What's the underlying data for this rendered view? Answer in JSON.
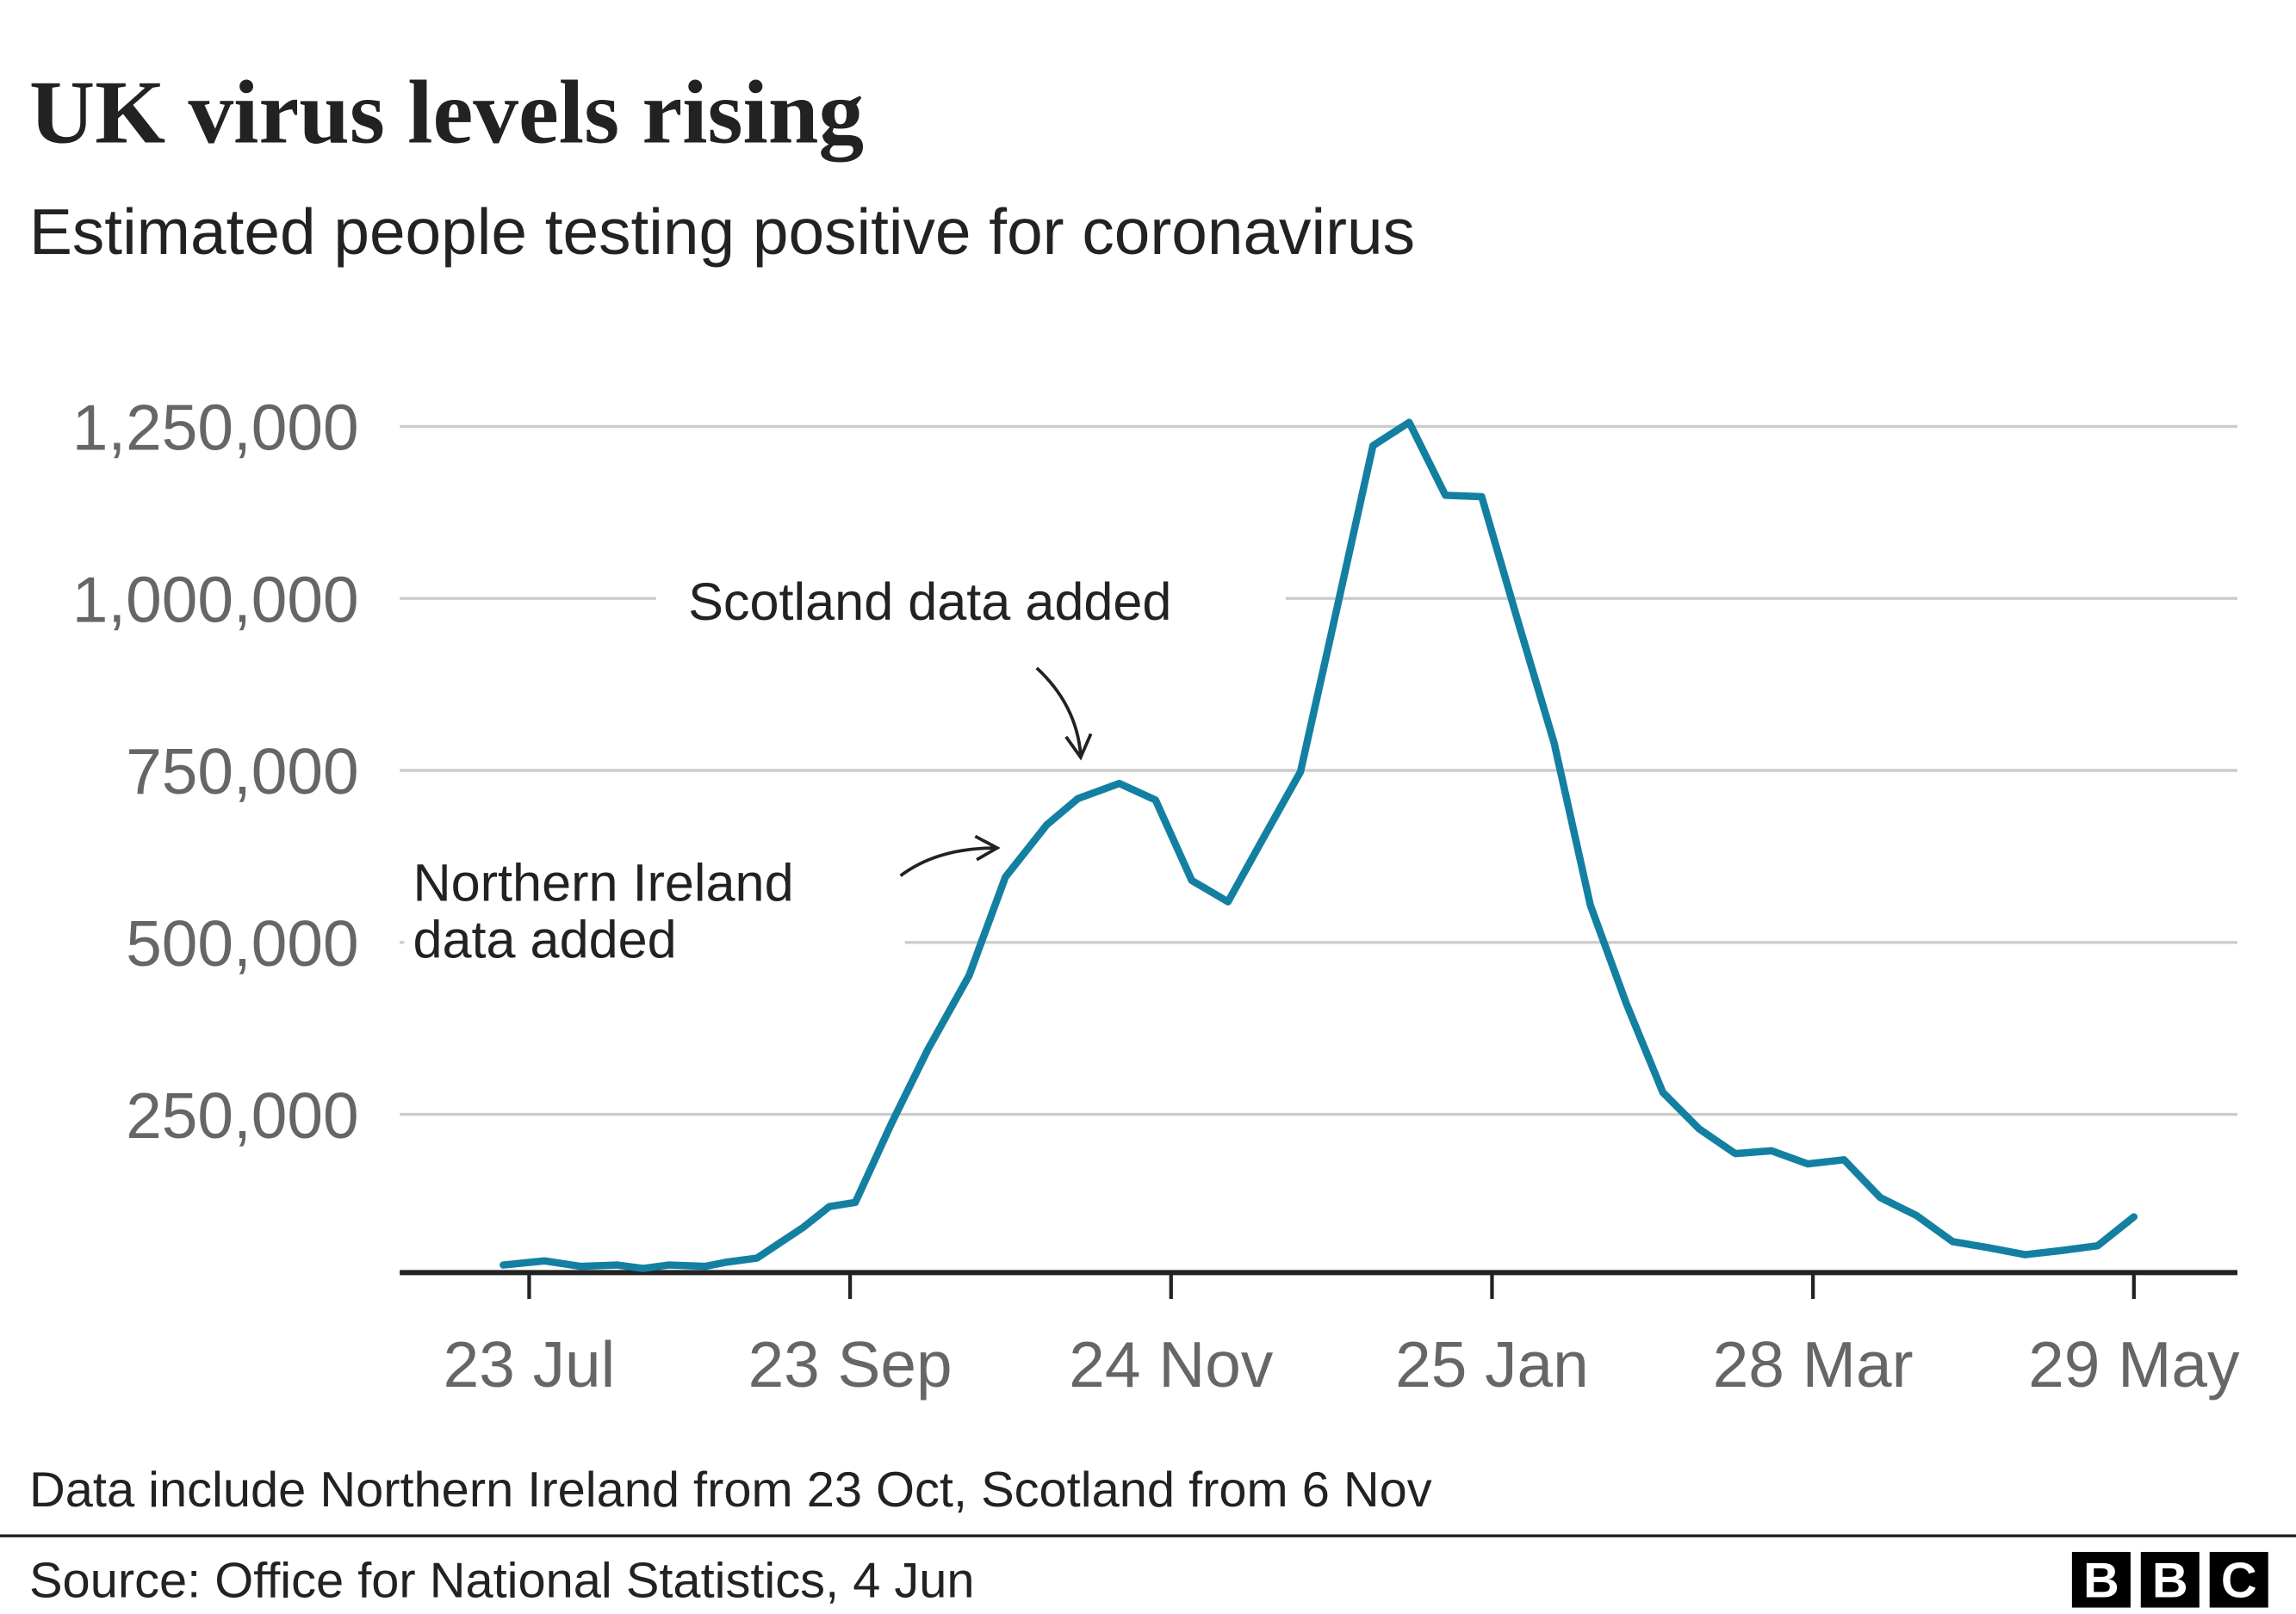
{
  "chart_data": {
    "type": "line",
    "title": "UK virus levels rising",
    "subtitle": "Estimated people testing positive for coronavirus",
    "x": [
      "18 Jul",
      "26 Jul",
      "2 Aug",
      "9 Aug",
      "14 Aug",
      "19 Aug",
      "26 Aug",
      "30 Aug",
      "5 Sep",
      "9 Sep",
      "14 Sep",
      "19 Sep",
      "24 Sep",
      "1 Oct",
      "8 Oct",
      "16 Oct",
      "23 Oct",
      "31 Oct",
      "6 Nov",
      "14 Nov",
      "21 Nov",
      "28 Nov",
      "5 Dec",
      "12 Dec",
      "19 Dec",
      "26 Dec",
      "2 Jan",
      "9 Jan",
      "16 Jan",
      "23 Jan",
      "30 Jan",
      "6 Feb",
      "13 Feb",
      "20 Feb",
      "27 Feb",
      "6 Mar",
      "13 Mar",
      "20 Mar",
      "27 Mar",
      "3 Apr",
      "10 Apr",
      "17 Apr",
      "24 Apr",
      "1 May",
      "8 May",
      "15 May",
      "22 May",
      "29 May"
    ],
    "values": [
      31000,
      37000,
      29000,
      31000,
      26000,
      31000,
      29000,
      35000,
      41000,
      61000,
      86000,
      116000,
      122000,
      237000,
      344000,
      452000,
      595000,
      671000,
      709000,
      731000,
      707000,
      590000,
      559000,
      654000,
      748000,
      984000,
      1222000,
      1256000,
      1150000,
      1148000,
      967000,
      790000,
      554000,
      410000,
      282000,
      229000,
      193000,
      197000,
      178000,
      184000,
      129000,
      103000,
      65000,
      56000,
      46000,
      52000,
      59000,
      101000
    ],
    "color": "#1380a1",
    "xlim": [
      "28 Jun",
      "18 Jun"
    ],
    "xticks": [
      "23 Jul",
      "23 Sep",
      "24 Nov",
      "25 Jan",
      "28 Mar",
      "29 May"
    ],
    "ylim": [
      20000,
      1270000
    ],
    "yticks": [
      {
        "value": 250000,
        "label": "250,000"
      },
      {
        "value": 500000,
        "label": "500,000"
      },
      {
        "value": 750000,
        "label": "750,000"
      },
      {
        "value": 1000000,
        "label": "1,000,000"
      },
      {
        "value": 1250000,
        "label": "1,250,000"
      }
    ],
    "grid": true,
    "annotations": [
      [
        "Scotland data added"
      ],
      [
        "Northern Ireland",
        "data added"
      ]
    ],
    "note": "Data include Northern Ireland from 23 Oct, Scotland from 6 Nov",
    "source": "Source: Office for National Statistics, 4 Jun"
  },
  "logo": [
    "B",
    "B",
    "C"
  ]
}
